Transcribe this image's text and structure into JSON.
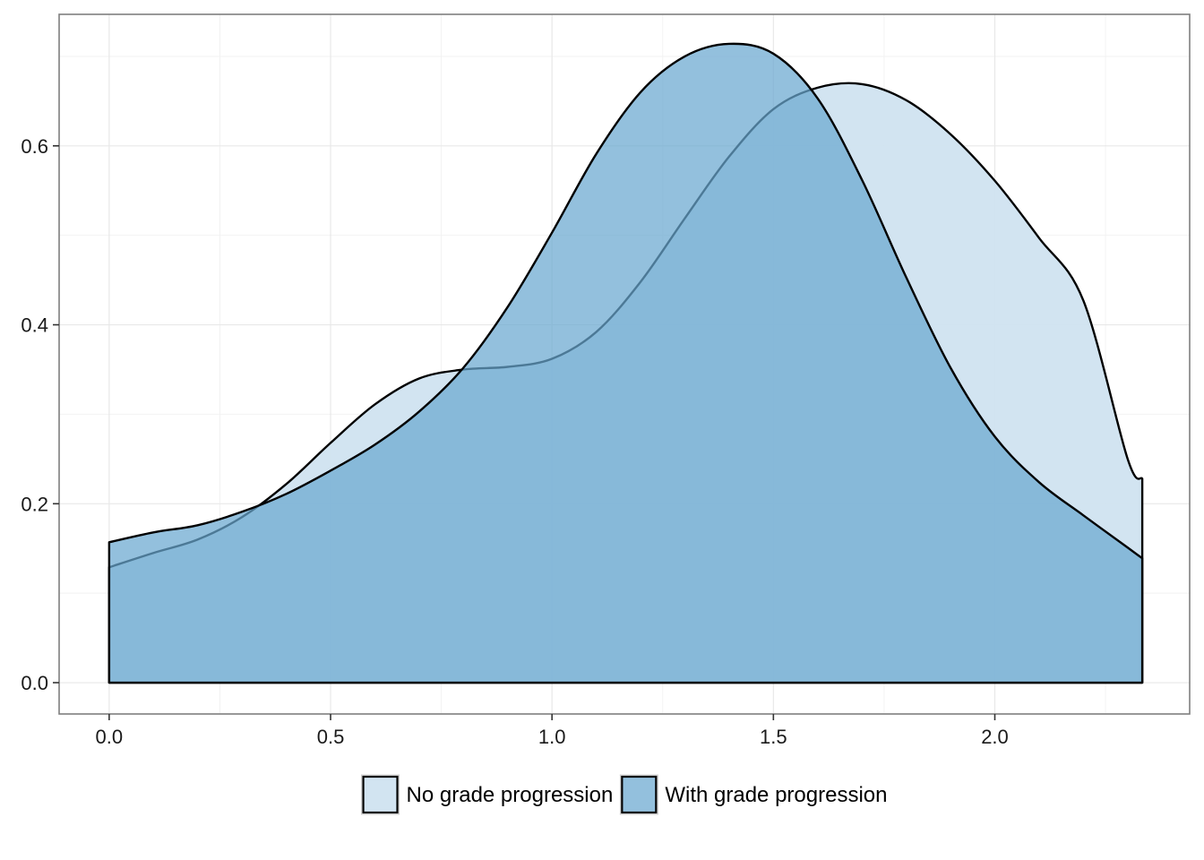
{
  "chart_data": {
    "type": "area",
    "subtype": "density",
    "title": "",
    "xlabel": "",
    "ylabel": "",
    "xlim": [
      -0.113,
      2.44
    ],
    "ylim": [
      -0.035,
      0.747
    ],
    "x_ticks": [
      {
        "value": 0.0,
        "label": "0.0"
      },
      {
        "value": 0.5,
        "label": "0.5"
      },
      {
        "value": 1.0,
        "label": "1.0"
      },
      {
        "value": 1.5,
        "label": "1.5"
      },
      {
        "value": 2.0,
        "label": "2.0"
      }
    ],
    "y_ticks": [
      {
        "value": 0.0,
        "label": "0.0"
      },
      {
        "value": 0.2,
        "label": "0.2"
      },
      {
        "value": 0.4,
        "label": "0.4"
      },
      {
        "value": 0.6,
        "label": "0.6"
      }
    ],
    "grid": true,
    "legend_position": "bottom",
    "series": [
      {
        "name": "No grade progression",
        "color": "#d0e3f0",
        "opacity": 0.95,
        "points": [
          [
            0.0,
            0.129
          ],
          [
            0.1,
            0.145
          ],
          [
            0.2,
            0.16
          ],
          [
            0.3,
            0.185
          ],
          [
            0.4,
            0.222
          ],
          [
            0.5,
            0.268
          ],
          [
            0.6,
            0.311
          ],
          [
            0.7,
            0.34
          ],
          [
            0.8,
            0.35
          ],
          [
            0.9,
            0.353
          ],
          [
            1.0,
            0.362
          ],
          [
            1.1,
            0.392
          ],
          [
            1.2,
            0.448
          ],
          [
            1.3,
            0.519
          ],
          [
            1.4,
            0.588
          ],
          [
            1.5,
            0.641
          ],
          [
            1.6,
            0.665
          ],
          [
            1.7,
            0.669
          ],
          [
            1.8,
            0.651
          ],
          [
            1.9,
            0.613
          ],
          [
            2.0,
            0.561
          ],
          [
            2.1,
            0.497
          ],
          [
            2.2,
            0.427
          ],
          [
            2.3,
            0.25
          ],
          [
            2.333,
            0.228
          ]
        ]
      },
      {
        "name": "With grade progression",
        "color": "#6aa7d0",
        "opacity": 0.72,
        "points": [
          [
            0.0,
            0.157
          ],
          [
            0.1,
            0.168
          ],
          [
            0.2,
            0.176
          ],
          [
            0.3,
            0.191
          ],
          [
            0.4,
            0.211
          ],
          [
            0.5,
            0.237
          ],
          [
            0.6,
            0.266
          ],
          [
            0.7,
            0.303
          ],
          [
            0.8,
            0.352
          ],
          [
            0.9,
            0.42
          ],
          [
            1.0,
            0.503
          ],
          [
            1.1,
            0.591
          ],
          [
            1.2,
            0.66
          ],
          [
            1.3,
            0.7
          ],
          [
            1.4,
            0.714
          ],
          [
            1.5,
            0.703
          ],
          [
            1.6,
            0.653
          ],
          [
            1.7,
            0.562
          ],
          [
            1.8,
            0.453
          ],
          [
            1.9,
            0.352
          ],
          [
            2.0,
            0.275
          ],
          [
            2.1,
            0.224
          ],
          [
            2.2,
            0.187
          ],
          [
            2.3,
            0.151
          ],
          [
            2.333,
            0.139
          ]
        ]
      }
    ]
  }
}
